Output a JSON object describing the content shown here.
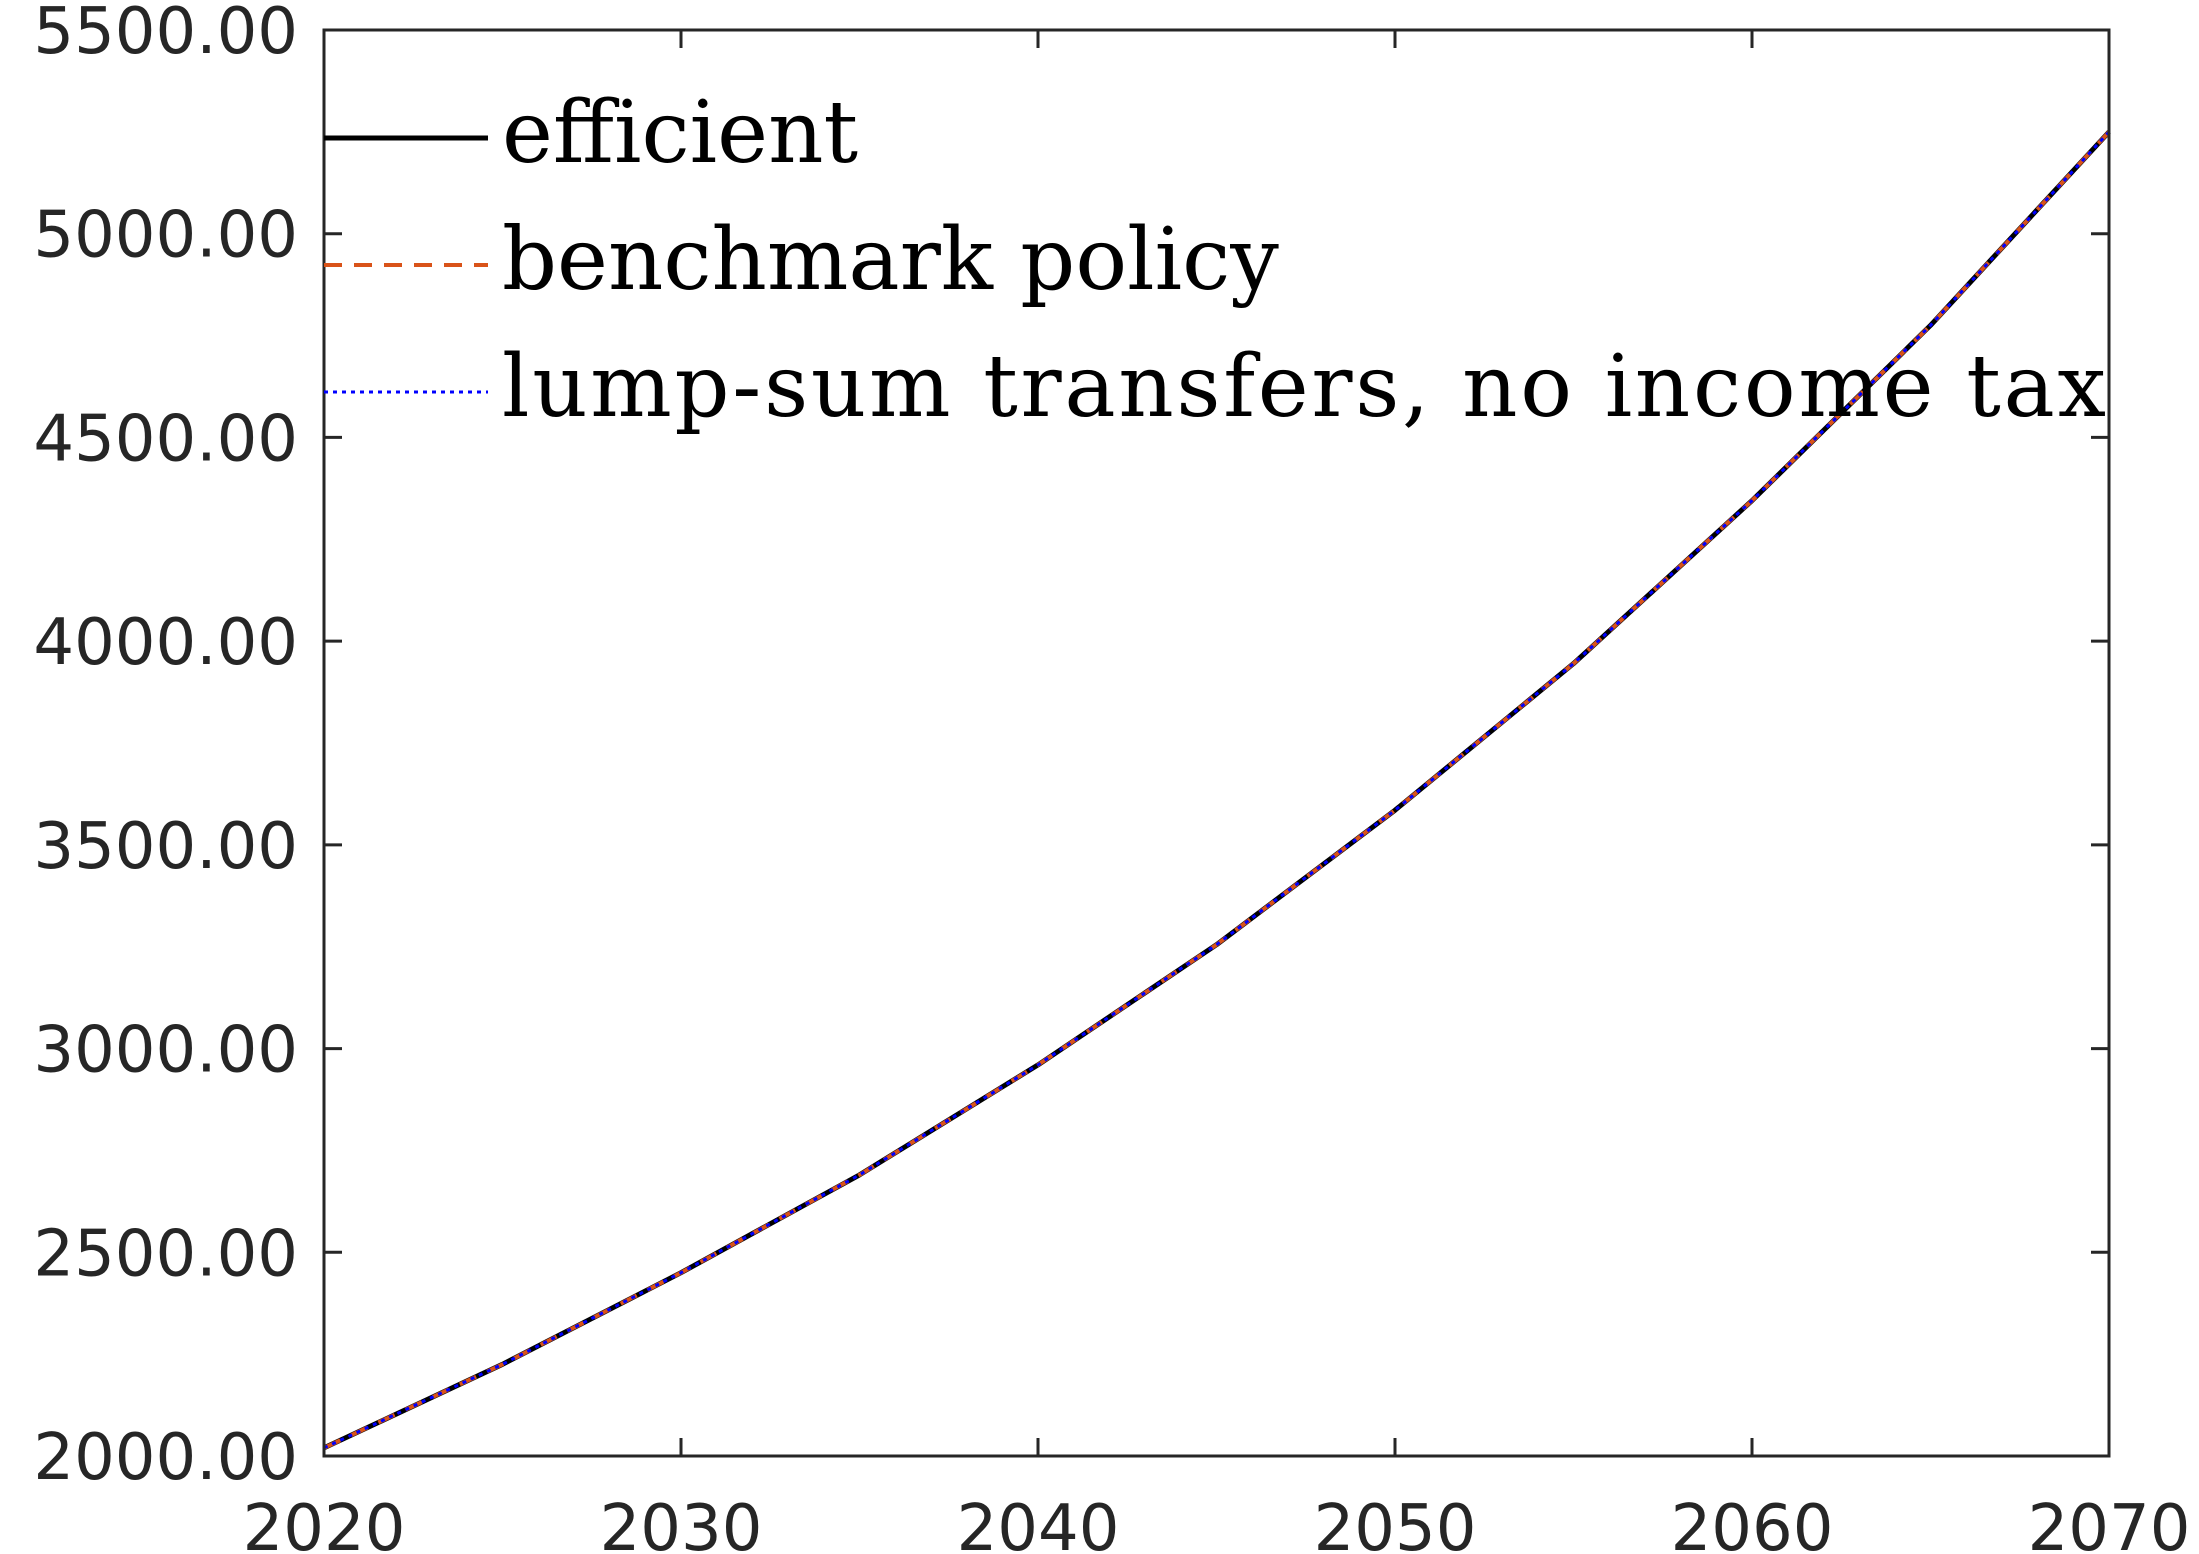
{
  "chart_data": {
    "type": "line",
    "title": "",
    "xlabel": "",
    "ylabel": "",
    "xlim": [
      2020,
      2070
    ],
    "ylim": [
      2000,
      5500
    ],
    "x_ticks": [
      2020,
      2030,
      2040,
      2050,
      2060,
      2070
    ],
    "x_tick_labels": [
      "2020",
      "2030",
      "2040",
      "2050",
      "2060",
      "2070"
    ],
    "y_ticks": [
      2000,
      2500,
      3000,
      3500,
      4000,
      4500,
      5000,
      5500
    ],
    "y_tick_labels": [
      "2000.00",
      "2500.00",
      "3000.00",
      "3500.00",
      "4000.00",
      "4500.00",
      "5000.00",
      "5500.00"
    ],
    "grid": false,
    "legend_position": "top-left",
    "x": [
      2020,
      2025,
      2030,
      2035,
      2040,
      2045,
      2050,
      2055,
      2060,
      2065,
      2070
    ],
    "series": [
      {
        "name": "efficient",
        "color": "#000000",
        "style": "solid",
        "values": [
          2020,
          2225,
          2450,
          2690,
          2960,
          3255,
          3585,
          3945,
          4345,
          4775,
          5250
        ]
      },
      {
        "name": "benchmark policy",
        "color": "#D95319",
        "style": "dashed",
        "values": [
          2020,
          2225,
          2450,
          2690,
          2960,
          3255,
          3585,
          3945,
          4345,
          4775,
          5250
        ]
      },
      {
        "name": "lump-sum transfers, no income tax",
        "color": "#0000FF",
        "style": "dotted",
        "values": [
          2020,
          2225,
          2450,
          2690,
          2960,
          3255,
          3585,
          3945,
          4345,
          4775,
          5250
        ]
      }
    ]
  }
}
